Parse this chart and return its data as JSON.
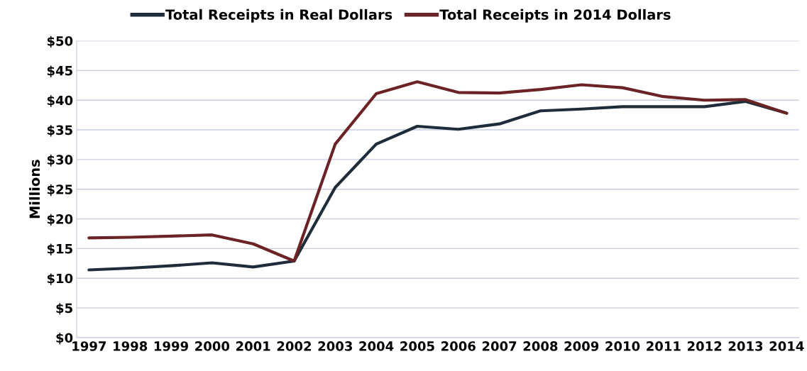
{
  "chart_data": {
    "type": "line",
    "ylabel": "Millions",
    "categories": [
      "1997",
      "1998",
      "1999",
      "2000",
      "2001",
      "2002",
      "2003",
      "2004",
      "2005",
      "2006",
      "2007",
      "2008",
      "2009",
      "2010",
      "2011",
      "2012",
      "2013",
      "2014"
    ],
    "series": [
      {
        "name": "Total Receipts in Real Dollars",
        "color": "#1f2d3a",
        "values": [
          11.4,
          11.7,
          12.1,
          12.6,
          11.9,
          12.9,
          25.3,
          32.6,
          35.6,
          35.1,
          36.0,
          38.2,
          38.5,
          38.9,
          38.9,
          38.9,
          39.8,
          37.8
        ]
      },
      {
        "name": "Total Receipts in 2014 Dollars",
        "color": "#6b2326",
        "values": [
          16.8,
          16.9,
          17.1,
          17.3,
          15.8,
          12.9,
          32.6,
          41.1,
          43.1,
          41.3,
          41.2,
          41.8,
          42.6,
          42.1,
          40.6,
          40.0,
          40.1,
          37.8
        ]
      }
    ],
    "ylim": [
      0,
      50
    ],
    "yticks": [
      {
        "value": 0,
        "label": "$0"
      },
      {
        "value": 5,
        "label": "$5"
      },
      {
        "value": 10,
        "label": "$10"
      },
      {
        "value": 15,
        "label": "$15"
      },
      {
        "value": 20,
        "label": "$20"
      },
      {
        "value": 25,
        "label": "$25"
      },
      {
        "value": 30,
        "label": "$30"
      },
      {
        "value": 35,
        "label": "$35"
      },
      {
        "value": 40,
        "label": "$40"
      },
      {
        "value": 45,
        "label": "$45"
      },
      {
        "value": 50,
        "label": "$50"
      }
    ],
    "grid": "y",
    "legend": "top",
    "marker": "none",
    "line_style": "solid"
  }
}
